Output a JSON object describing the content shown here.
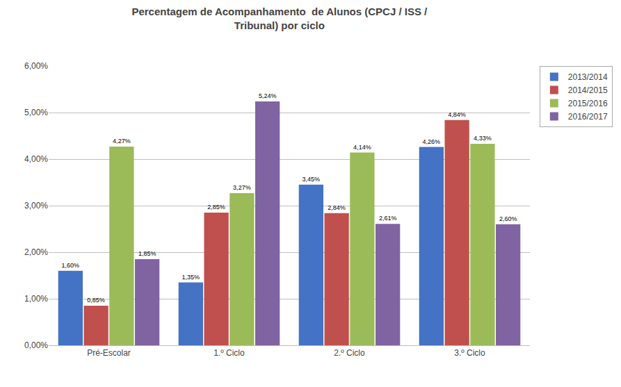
{
  "chart_data": {
    "type": "bar",
    "title": "Percentagem de Acompanhamento  de Alunos (CPCJ / ISS /\nTribunal) por ciclo",
    "categories": [
      "Pré-Escolar",
      "1.º Ciclo",
      "2.º Ciclo",
      "3.º Ciclo"
    ],
    "series": [
      {
        "name": "2013/2014",
        "color": "#4472C4",
        "values": [
          0.016,
          0.0135,
          0.0345,
          0.0426
        ],
        "value_labels": [
          "1,60%",
          "1,35%",
          "3,45%",
          "4,26%"
        ]
      },
      {
        "name": "2014/2015",
        "color": "#C0504D",
        "values": [
          0.0085,
          0.0285,
          0.0284,
          0.0484
        ],
        "value_labels": [
          "0,85%",
          "2,85%",
          "2,84%",
          "4,84%"
        ]
      },
      {
        "name": "2015/2016",
        "color": "#9BBB59",
        "values": [
          0.0427,
          0.0327,
          0.0414,
          0.0433
        ],
        "value_labels": [
          "4,27%",
          "3,27%",
          "4,14%",
          "4,33%"
        ]
      },
      {
        "name": "2016/2017",
        "color": "#8064A2",
        "values": [
          0.0185,
          0.0524,
          0.0261,
          0.026
        ],
        "value_labels": [
          "1,85%",
          "5,24%",
          "2,61%",
          "2,60%"
        ]
      }
    ],
    "ylim": [
      0.0,
      0.06
    ],
    "yticks": [
      {
        "value": 0.0,
        "label": "0,00%"
      },
      {
        "value": 0.01,
        "label": "1,00%"
      },
      {
        "value": 0.02,
        "label": "2,00%"
      },
      {
        "value": 0.03,
        "label": "3,00%"
      },
      {
        "value": 0.04,
        "label": "4,00%"
      },
      {
        "value": 0.05,
        "label": "5,00%"
      },
      {
        "value": 0.06,
        "label": "6,00%"
      }
    ],
    "grid": true,
    "legend": "right",
    "data_labels": true
  }
}
